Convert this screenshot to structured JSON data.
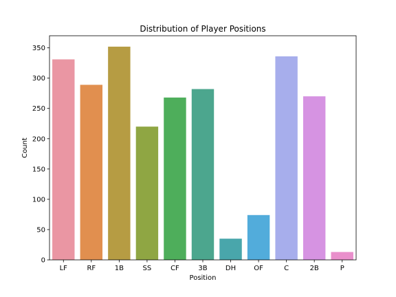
{
  "chart_data": {
    "type": "bar",
    "title": "Distribution of Player Positions",
    "xlabel": "Position",
    "ylabel": "Count",
    "categories": [
      "LF",
      "RF",
      "1B",
      "SS",
      "CF",
      "3B",
      "DH",
      "OF",
      "C",
      "2B",
      "P"
    ],
    "values": [
      331,
      289,
      352,
      220,
      268,
      282,
      35,
      74,
      336,
      270,
      13
    ],
    "colors": [
      "#ea96a3",
      "#e18f4f",
      "#b69c43",
      "#8fa643",
      "#4eae5b",
      "#4ca68e",
      "#49a6ab",
      "#52acdb",
      "#a7aeec",
      "#d693e2",
      "#e98fcb"
    ],
    "ylim": [
      0,
      370
    ],
    "yticks": [
      0,
      50,
      100,
      150,
      200,
      250,
      300,
      350
    ],
    "grid": false,
    "legend": "none"
  }
}
